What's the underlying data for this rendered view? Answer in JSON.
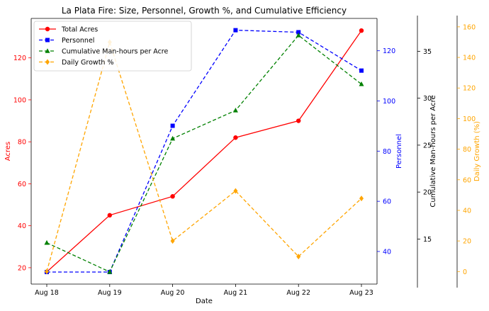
{
  "chart_data": {
    "type": "line",
    "title": "La Plata Fire: Size, Personnel, Growth %, and Cumulative Efficiency",
    "xlabel": "Date",
    "categories": [
      "Aug 18",
      "Aug 19",
      "Aug 20",
      "Aug 21",
      "Aug 22",
      "Aug 23"
    ],
    "axes": [
      {
        "id": "acres",
        "label": "Acres",
        "color": "#ff0000",
        "ylim": [
          12.2,
          138.8
        ],
        "ticks": [
          20,
          40,
          60,
          80,
          100,
          120
        ],
        "tick_labels": [
          "20",
          "40",
          "60",
          "80",
          "100",
          "120"
        ]
      },
      {
        "id": "personnel",
        "label": "Personnel",
        "color": "#0000ff",
        "ylim": [
          27.0,
          132.9
        ],
        "ticks": [
          40,
          60,
          80,
          100,
          120
        ],
        "tick_labels": [
          "40",
          "60",
          "80",
          "100",
          "120"
        ]
      },
      {
        "id": "efficiency",
        "label": "Cumulative Man-hours per Acre",
        "color": "#000000",
        "ylim": [
          10.2,
          38.5
        ],
        "ticks": [
          15,
          20,
          25,
          30,
          35
        ],
        "tick_labels": [
          "15",
          "20",
          "25",
          "30",
          "35"
        ]
      },
      {
        "id": "growth",
        "label": "Daily Growth (%)",
        "color": "#ffa500",
        "ylim": [
          -8.2,
          165.5
        ],
        "ticks": [
          0,
          20,
          40,
          60,
          80,
          100,
          120,
          140,
          160
        ],
        "tick_labels": [
          "0",
          "20",
          "40",
          "60",
          "80",
          "100",
          "120",
          "140",
          "160"
        ]
      }
    ],
    "series": [
      {
        "name": "Total Acres",
        "axis": "acres",
        "color": "#ff0000",
        "dash": "solid",
        "marker": "circle",
        "values": [
          18,
          45,
          54,
          82,
          90,
          133
        ]
      },
      {
        "name": "Personnel",
        "axis": "personnel",
        "color": "#0000ff",
        "dash": "dashed",
        "marker": "square",
        "values": [
          31.8,
          31.8,
          90.1,
          128.2,
          127.4,
          112.1
        ]
      },
      {
        "name": "Cumulative Man-hours per Acre",
        "axis": "efficiency",
        "color": "#008000",
        "dash": "dashed",
        "marker": "triangle",
        "values": [
          14.6,
          11.5,
          25.7,
          28.7,
          36.7,
          31.5
        ]
      },
      {
        "name": "Daily Growth %",
        "axis": "growth",
        "color": "#ffa500",
        "dash": "dashed",
        "marker": "diamond",
        "values": [
          0,
          150,
          20,
          52.7,
          9.8,
          47.8
        ]
      }
    ],
    "legend": "top-left",
    "grid": false
  }
}
